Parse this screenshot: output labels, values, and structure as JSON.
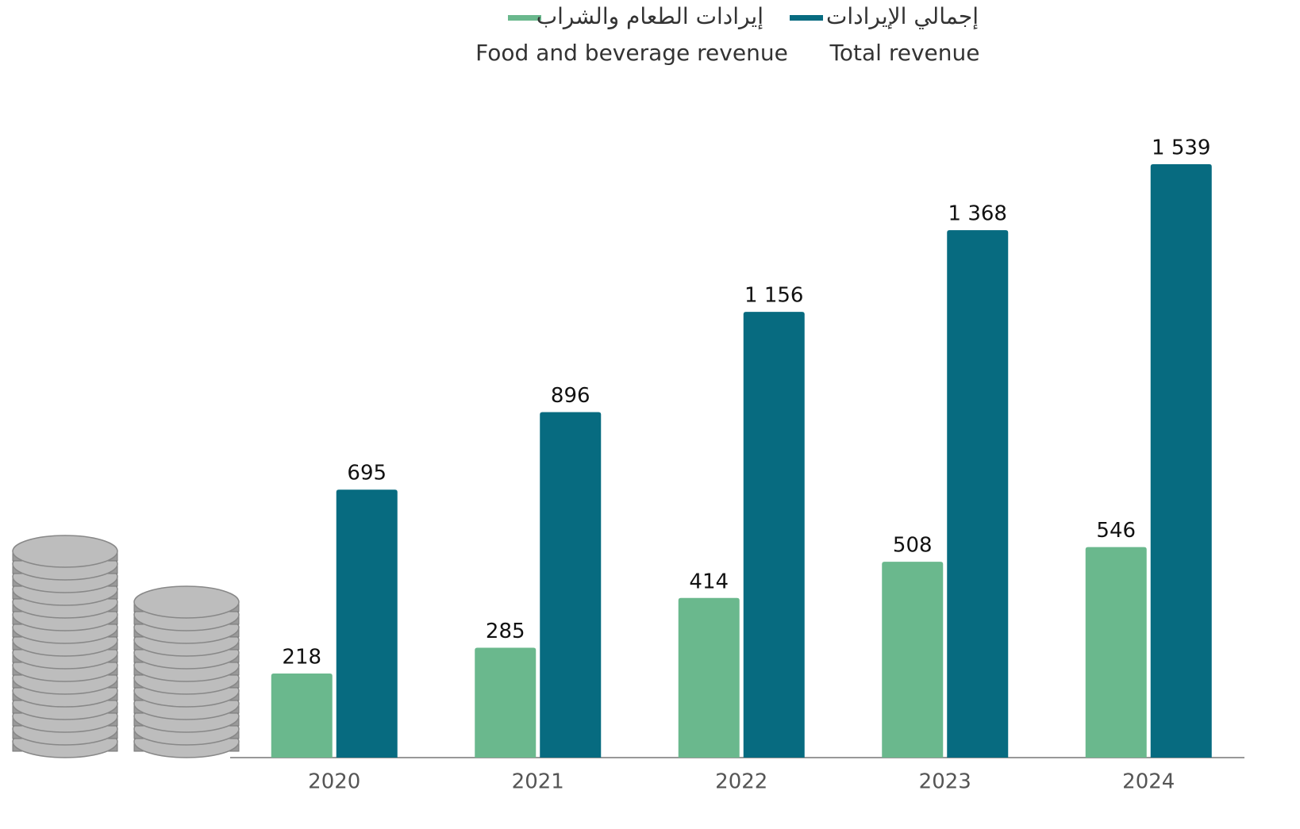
{
  "chart_data": {
    "type": "bar",
    "categories": [
      "2020",
      "2021",
      "2022",
      "2023",
      "2024"
    ],
    "series": [
      {
        "name": "Food and beverage revenue",
        "name_ar": "إيرادات الطعام والشراب",
        "color": "#6ab88d",
        "values": [
          218,
          285,
          414,
          508,
          546
        ],
        "value_labels": [
          "218",
          "285",
          "414",
          "508",
          "546"
        ]
      },
      {
        "name": "Total revenue",
        "name_ar": "إجمالي الإيرادات",
        "color": "#076b80",
        "values": [
          695,
          896,
          1156,
          1368,
          1539
        ],
        "value_labels": [
          "695",
          "896",
          "1 156",
          "1 368",
          "1 539"
        ]
      }
    ]
  }
}
